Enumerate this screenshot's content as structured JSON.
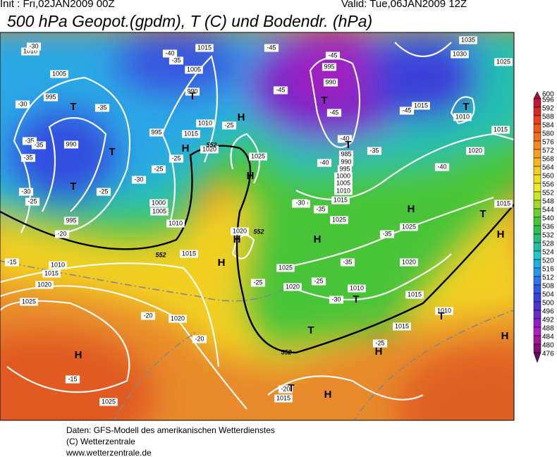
{
  "header": {
    "init": "Init : Fri,02JAN2009 00Z",
    "valid": "Valid: Tue,06JAN2009 12Z",
    "title": "500 hPa Geopot.(gpdm), T (C) und Bodendr. (hPa)"
  },
  "legend": {
    "levels": [
      600,
      596,
      592,
      588,
      584,
      580,
      576,
      572,
      568,
      564,
      560,
      556,
      552,
      548,
      544,
      540,
      536,
      532,
      528,
      524,
      520,
      516,
      512,
      508,
      504,
      500,
      496,
      492,
      488,
      484,
      480,
      476
    ],
    "colors": [
      "#a0103c",
      "#c01838",
      "#d82828",
      "#e84020",
      "#ec5a1c",
      "#f07020",
      "#f48a20",
      "#f4a020",
      "#f4b820",
      "#f4cc20",
      "#f0dc20",
      "#ecec28",
      "#c8e828",
      "#9cdc28",
      "#6cd030",
      "#44c838",
      "#30c050",
      "#28c078",
      "#20c0a0",
      "#20c8c8",
      "#20b0e0",
      "#2898e8",
      "#2c78e8",
      "#3058e0",
      "#3c40d8",
      "#5030d0",
      "#7028c8",
      "#9020c8",
      "#b020c0",
      "#a01898",
      "#801070",
      "#600c58"
    ]
  },
  "map": {
    "pressure_labels": [
      1015,
      1010,
      1005,
      995,
      990,
      995,
      1005,
      990,
      995,
      1010,
      1015,
      1020,
      1025,
      1000,
      1005,
      1010,
      1015,
      1010,
      1015,
      1020,
      1025,
      1020,
      1025,
      995,
      990,
      985,
      990,
      995,
      1000,
      1005,
      1010,
      1015,
      1020,
      1025,
      1020,
      1025,
      1020,
      1010,
      1015,
      1020,
      1025,
      1015,
      1010,
      1015,
      1020,
      1030,
      1035,
      1025,
      1015,
      1010,
      1015,
      1015
    ],
    "temperature_labels": [
      -30,
      -40,
      -35,
      -45,
      -45,
      -45,
      -45,
      -45,
      -40,
      -35,
      -40,
      -40,
      -30,
      -35,
      -35,
      -35,
      -35,
      -25,
      -25,
      -25,
      -30,
      -25,
      -30,
      -25,
      -20,
      -15,
      -30,
      -35,
      -35,
      -35,
      -25,
      -30,
      -25,
      -20,
      -20,
      -15,
      -25,
      -20
    ],
    "centers": [
      "T",
      "T",
      "T",
      "T",
      "H",
      "T",
      "T",
      "H",
      "H",
      "H",
      "H",
      "H",
      "H",
      "T",
      "H",
      "T",
      "T",
      "T",
      "H",
      "H",
      "T",
      "H",
      "H",
      "T"
    ],
    "contour_labels": [
      552,
      552,
      552,
      552
    ]
  },
  "footer": {
    "lines": [
      "Daten: GFS-Modell des amerikanischen Wetterdienstes",
      "(C) Wetterzentrale",
      "www.wetterzentrale.de"
    ]
  }
}
